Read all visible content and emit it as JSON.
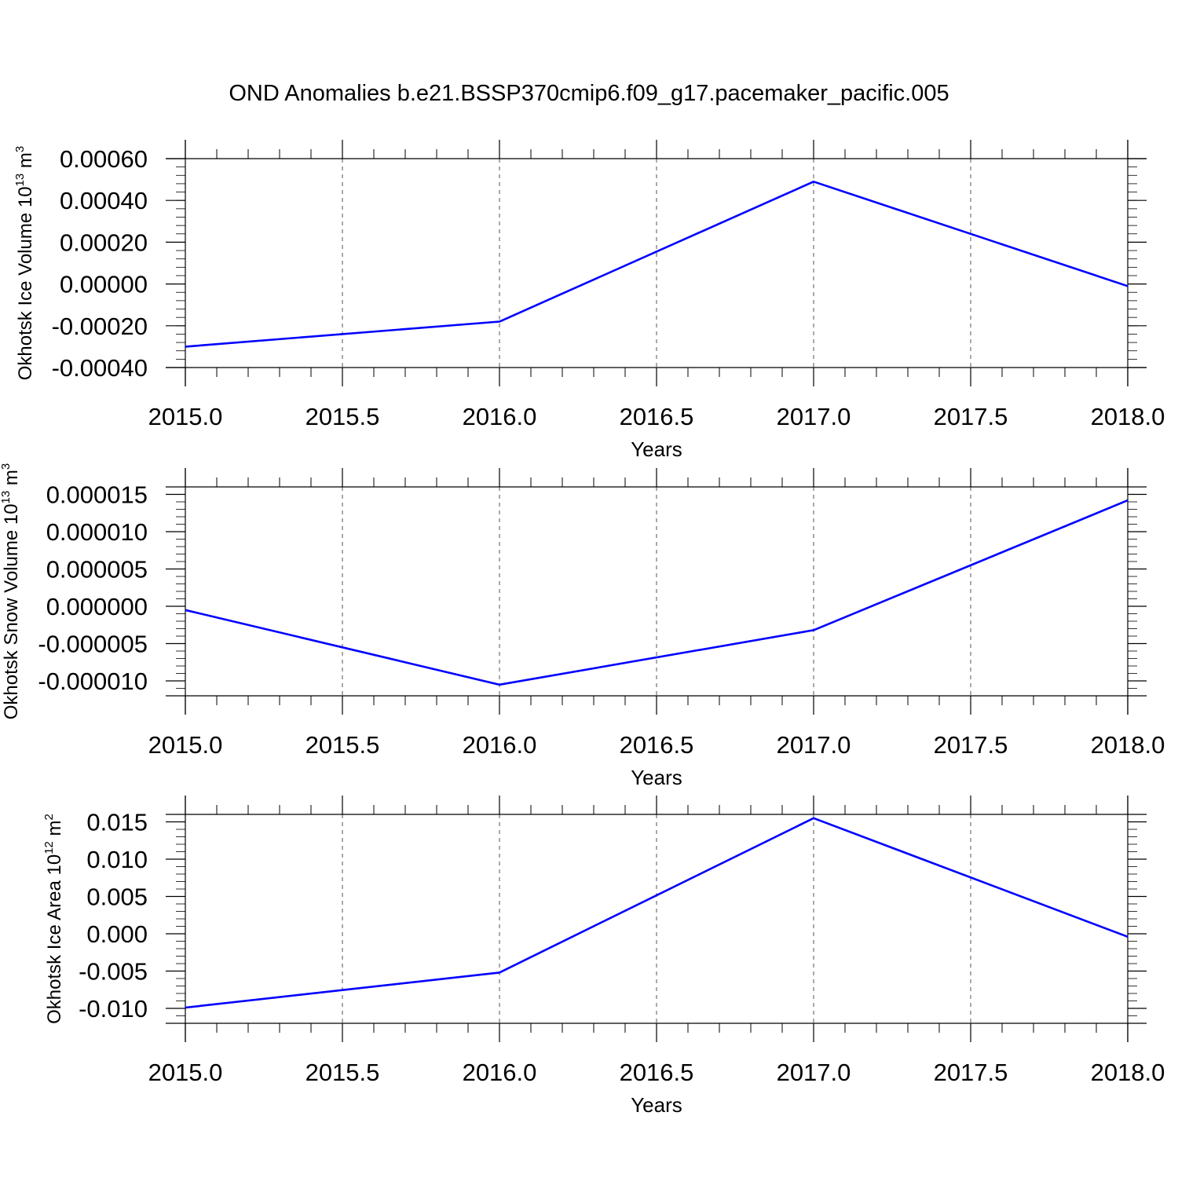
{
  "title": "OND Anomalies b.e21.BSSP370cmip6.f09_g17.pacemaker_pacific.005",
  "colors": {
    "line": "#0000ff",
    "axis": "#000000",
    "grid": "#555555"
  },
  "chart_data": [
    {
      "type": "line",
      "xlabel": "Years",
      "ylabel": {
        "main": "Okhotsk Ice Volume 10",
        "exp": "13",
        "unit": " m",
        "unit_exp": "3"
      },
      "xlim": [
        2015.0,
        2018.0
      ],
      "ylim": [
        -0.0004,
        0.0006
      ],
      "x_ticks": [
        2015.0,
        2015.5,
        2016.0,
        2016.5,
        2017.0,
        2017.5,
        2018.0
      ],
      "x_tick_labels": [
        "2015.0",
        "2015.5",
        "2016.0",
        "2016.5",
        "2017.0",
        "2017.5",
        "2018.0"
      ],
      "y_ticks": [
        -0.0004,
        -0.0002,
        0.0,
        0.0002,
        0.0004,
        0.0006
      ],
      "y_tick_labels": [
        "-0.00040",
        "-0.00020",
        "0.00000",
        "0.00020",
        "0.00040",
        "0.00060"
      ],
      "y_minor_step": 4e-05,
      "grid": "vertical dashed",
      "x": [
        2015,
        2016,
        2017,
        2018
      ],
      "y": [
        -0.0003,
        -0.00018,
        0.00049,
        -1e-05
      ]
    },
    {
      "type": "line",
      "xlabel": "Years",
      "ylabel": {
        "main": "Okhotsk Snow Volume 10",
        "exp": "13",
        "unit": " m",
        "unit_exp": "3"
      },
      "xlim": [
        2015.0,
        2018.0
      ],
      "ylim": [
        -1.2e-05,
        1.6e-05
      ],
      "x_ticks": [
        2015.0,
        2015.5,
        2016.0,
        2016.5,
        2017.0,
        2017.5,
        2018.0
      ],
      "x_tick_labels": [
        "2015.0",
        "2015.5",
        "2016.0",
        "2016.5",
        "2017.0",
        "2017.5",
        "2018.0"
      ],
      "y_ticks": [
        -1e-05,
        -5e-06,
        0.0,
        5e-06,
        1e-05,
        1.5e-05
      ],
      "y_tick_labels": [
        "-0.000010",
        "-0.000005",
        "0.000000",
        "0.000005",
        "0.000010",
        "0.000015"
      ],
      "y_minor_step": 1e-06,
      "grid": "vertical dashed",
      "x": [
        2015,
        2016,
        2017,
        2018
      ],
      "y": [
        -5e-07,
        -1.05e-05,
        -3.2e-06,
        1.42e-05
      ]
    },
    {
      "type": "line",
      "xlabel": "Years",
      "ylabel": {
        "main": "Okhotsk Ice Area 10",
        "exp": "12",
        "unit": " m",
        "unit_exp": "2"
      },
      "xlim": [
        2015.0,
        2018.0
      ],
      "ylim": [
        -0.012,
        0.016
      ],
      "x_ticks": [
        2015.0,
        2015.5,
        2016.0,
        2016.5,
        2017.0,
        2017.5,
        2018.0
      ],
      "x_tick_labels": [
        "2015.0",
        "2015.5",
        "2016.0",
        "2016.5",
        "2017.0",
        "2017.5",
        "2018.0"
      ],
      "y_ticks": [
        -0.01,
        -0.005,
        0.0,
        0.005,
        0.01,
        0.015
      ],
      "y_tick_labels": [
        "-0.010",
        "-0.005",
        "0.000",
        "0.005",
        "0.010",
        "0.015"
      ],
      "y_minor_step": 0.001,
      "grid": "vertical dashed",
      "x": [
        2015,
        2016,
        2017,
        2018
      ],
      "y": [
        -0.0099,
        -0.0052,
        0.0155,
        -0.0004
      ]
    }
  ]
}
